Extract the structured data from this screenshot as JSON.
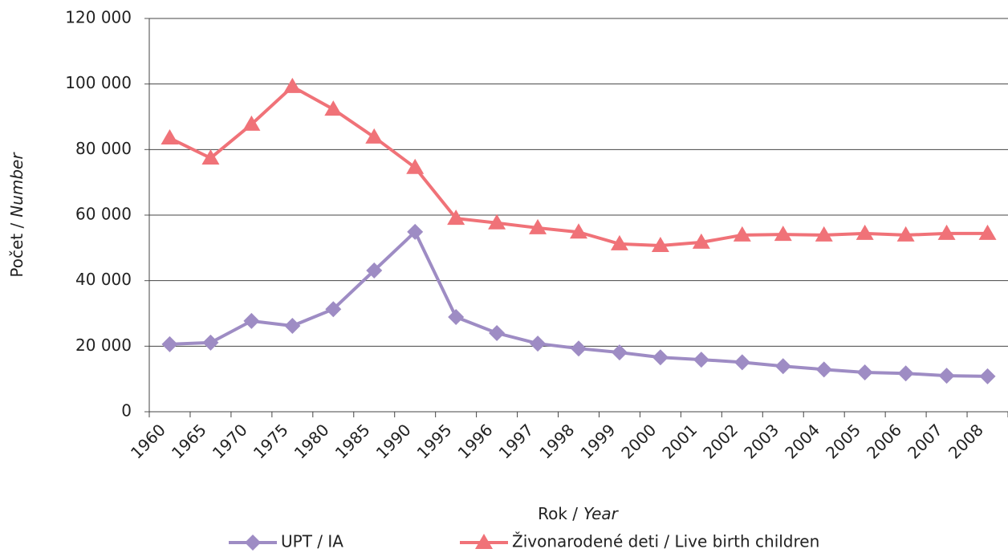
{
  "chart_data": {
    "type": "line",
    "ylabel": [
      "Počet /",
      "Number"
    ],
    "xlabel": [
      "Rok /",
      "Year"
    ],
    "categories": [
      "1960",
      "1965",
      "1970",
      "1975",
      "1980",
      "1985",
      "1990",
      "1995",
      "1996",
      "1997",
      "1998",
      "1999",
      "2000",
      "2001",
      "2002",
      "2003",
      "2004",
      "2005",
      "2006",
      "2007",
      "2008"
    ],
    "series": [
      {
        "name": "UPT / IA",
        "color": "#9e8cc4",
        "marker": "diamond",
        "values": [
          20600,
          21100,
          27700,
          26200,
          31300,
          43100,
          54900,
          28900,
          24000,
          20800,
          19300,
          18100,
          16600,
          15900,
          15100,
          13900,
          12900,
          12000,
          11700,
          11000,
          10800
        ]
      },
      {
        "name": "Živonarodené deti / Live birth children",
        "color": "#f07278",
        "marker": "triangle",
        "values": [
          83500,
          77400,
          87700,
          99200,
          92300,
          83800,
          74500,
          59000,
          57600,
          56100,
          54800,
          51200,
          50700,
          51700,
          53900,
          54100,
          53900,
          54400,
          53900,
          54400,
          54400
        ]
      }
    ],
    "ylim": [
      0,
      120000
    ],
    "yticks": [
      {
        "value": 0,
        "label": "0"
      },
      {
        "value": 20000,
        "label": "20 000"
      },
      {
        "value": 40000,
        "label": "40 000"
      },
      {
        "value": 60000,
        "label": "60 000"
      },
      {
        "value": 80000,
        "label": "80 000"
      },
      {
        "value": 100000,
        "label": "100 000"
      },
      {
        "value": 120000,
        "label": "120 000"
      }
    ],
    "grid": true,
    "legend": "bottom"
  }
}
